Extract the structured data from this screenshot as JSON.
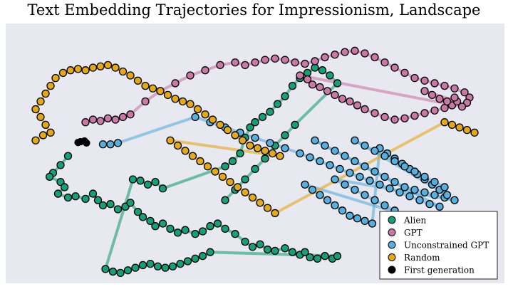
{
  "chart_data": {
    "type": "scatter",
    "title": "Text Embedding Trajectories for Impressionism, Landscape",
    "xlabel": "",
    "ylabel": "",
    "grid": false,
    "legend_position": "bottom-right",
    "background": "#e8e8f0",
    "series": [
      {
        "name": "Alien",
        "color": "#1a9e77",
        "points": [
          [
            0.125,
            0.51
          ],
          [
            0.11,
            0.545
          ],
          [
            0.095,
            0.575
          ],
          [
            0.088,
            0.59
          ],
          [
            0.11,
            0.61
          ],
          [
            0.118,
            0.63
          ],
          [
            0.105,
            0.655
          ],
          [
            0.125,
            0.67
          ],
          [
            0.14,
            0.665
          ],
          [
            0.16,
            0.675
          ],
          [
            0.175,
            0.655
          ],
          [
            0.185,
            0.68
          ],
          [
            0.195,
            0.7
          ],
          [
            0.21,
            0.695
          ],
          [
            0.225,
            0.715
          ],
          [
            0.24,
            0.705
          ],
          [
            0.25,
            0.69
          ],
          [
            0.265,
            0.725
          ],
          [
            0.275,
            0.745
          ],
          [
            0.29,
            0.76
          ],
          [
            0.3,
            0.78
          ],
          [
            0.315,
            0.77
          ],
          [
            0.33,
            0.79
          ],
          [
            0.345,
            0.805
          ],
          [
            0.36,
            0.795
          ],
          [
            0.38,
            0.81
          ],
          [
            0.395,
            0.8
          ],
          [
            0.41,
            0.78
          ],
          [
            0.425,
            0.77
          ],
          [
            0.44,
            0.79
          ],
          [
            0.46,
            0.81
          ],
          [
            0.48,
            0.84
          ],
          [
            0.495,
            0.86
          ],
          [
            0.51,
            0.85
          ],
          [
            0.525,
            0.87
          ],
          [
            0.54,
            0.875
          ],
          [
            0.56,
            0.865
          ],
          [
            0.575,
            0.88
          ],
          [
            0.59,
            0.89
          ],
          [
            0.6,
            0.88
          ],
          [
            0.61,
            0.9
          ],
          [
            0.625,
            0.905
          ],
          [
            0.64,
            0.895
          ],
          [
            0.655,
            0.905
          ],
          [
            0.665,
            0.895
          ],
          [
            0.41,
            0.88
          ],
          [
            0.395,
            0.895
          ],
          [
            0.38,
            0.905
          ],
          [
            0.365,
            0.915
          ],
          [
            0.35,
            0.925
          ],
          [
            0.335,
            0.935
          ],
          [
            0.32,
            0.94
          ],
          [
            0.305,
            0.935
          ],
          [
            0.29,
            0.925
          ],
          [
            0.275,
            0.93
          ],
          [
            0.26,
            0.94
          ],
          [
            0.245,
            0.95
          ],
          [
            0.23,
            0.96
          ],
          [
            0.215,
            0.955
          ],
          [
            0.2,
            0.945
          ],
          [
            0.255,
            0.6
          ],
          [
            0.27,
            0.605
          ],
          [
            0.285,
            0.62
          ],
          [
            0.3,
            0.61
          ],
          [
            0.315,
            0.635
          ],
          [
            0.44,
            0.55
          ],
          [
            0.455,
            0.53
          ],
          [
            0.47,
            0.5
          ],
          [
            0.48,
            0.44
          ],
          [
            0.49,
            0.4
          ],
          [
            0.5,
            0.38
          ],
          [
            0.515,
            0.36
          ],
          [
            0.53,
            0.34
          ],
          [
            0.545,
            0.31
          ],
          [
            0.56,
            0.28
          ],
          [
            0.575,
            0.24
          ],
          [
            0.59,
            0.21
          ],
          [
            0.605,
            0.19
          ],
          [
            0.62,
            0.17
          ],
          [
            0.635,
            0.18
          ],
          [
            0.65,
            0.2
          ],
          [
            0.665,
            0.23
          ],
          [
            0.58,
            0.39
          ],
          [
            0.56,
            0.43
          ],
          [
            0.54,
            0.47
          ],
          [
            0.52,
            0.52
          ],
          [
            0.5,
            0.56
          ],
          [
            0.48,
            0.6
          ],
          [
            0.46,
            0.64
          ],
          [
            0.44,
            0.68
          ]
        ]
      },
      {
        "name": "GPT",
        "color": "#c87aa6",
        "points": [
          [
            0.16,
            0.38
          ],
          [
            0.175,
            0.37
          ],
          [
            0.19,
            0.375
          ],
          [
            0.205,
            0.365
          ],
          [
            0.22,
            0.37
          ],
          [
            0.235,
            0.36
          ],
          [
            0.25,
            0.35
          ],
          [
            0.28,
            0.3
          ],
          [
            0.31,
            0.26
          ],
          [
            0.34,
            0.23
          ],
          [
            0.37,
            0.2
          ],
          [
            0.4,
            0.18
          ],
          [
            0.43,
            0.16
          ],
          [
            0.46,
            0.15
          ],
          [
            0.48,
            0.16
          ],
          [
            0.5,
            0.15
          ],
          [
            0.52,
            0.14
          ],
          [
            0.54,
            0.135
          ],
          [
            0.56,
            0.14
          ],
          [
            0.58,
            0.15
          ],
          [
            0.6,
            0.155
          ],
          [
            0.62,
            0.145
          ],
          [
            0.64,
            0.13
          ],
          [
            0.66,
            0.12
          ],
          [
            0.68,
            0.11
          ],
          [
            0.7,
            0.105
          ],
          [
            0.72,
            0.115
          ],
          [
            0.74,
            0.13
          ],
          [
            0.76,
            0.15
          ],
          [
            0.78,
            0.17
          ],
          [
            0.8,
            0.19
          ],
          [
            0.82,
            0.21
          ],
          [
            0.84,
            0.22
          ],
          [
            0.86,
            0.23
          ],
          [
            0.88,
            0.24
          ],
          [
            0.9,
            0.25
          ],
          [
            0.92,
            0.265
          ],
          [
            0.93,
            0.285
          ],
          [
            0.925,
            0.305
          ],
          [
            0.915,
            0.32
          ],
          [
            0.59,
            0.2
          ],
          [
            0.605,
            0.215
          ],
          [
            0.615,
            0.235
          ],
          [
            0.63,
            0.245
          ],
          [
            0.645,
            0.26
          ],
          [
            0.66,
            0.275
          ],
          [
            0.675,
            0.29
          ],
          [
            0.69,
            0.3
          ],
          [
            0.705,
            0.315
          ],
          [
            0.72,
            0.33
          ],
          [
            0.74,
            0.345
          ],
          [
            0.76,
            0.36
          ],
          [
            0.78,
            0.37
          ],
          [
            0.8,
            0.365
          ],
          [
            0.82,
            0.355
          ],
          [
            0.84,
            0.345
          ],
          [
            0.86,
            0.335
          ],
          [
            0.88,
            0.325
          ],
          [
            0.895,
            0.315
          ],
          [
            0.905,
            0.3
          ],
          [
            0.84,
            0.26
          ],
          [
            0.855,
            0.275
          ],
          [
            0.87,
            0.29
          ],
          [
            0.885,
            0.3
          ],
          [
            0.9,
            0.285
          ]
        ]
      },
      {
        "name": "Unconstrained GPT",
        "color": "#5aaedb",
        "points": [
          [
            0.195,
            0.465
          ],
          [
            0.21,
            0.465
          ],
          [
            0.225,
            0.46
          ],
          [
            0.38,
            0.36
          ],
          [
            0.41,
            0.38
          ],
          [
            0.44,
            0.4
          ],
          [
            0.47,
            0.42
          ],
          [
            0.5,
            0.44
          ],
          [
            0.53,
            0.46
          ],
          [
            0.56,
            0.48
          ],
          [
            0.59,
            0.5
          ],
          [
            0.61,
            0.515
          ],
          [
            0.63,
            0.53
          ],
          [
            0.65,
            0.545
          ],
          [
            0.67,
            0.56
          ],
          [
            0.69,
            0.575
          ],
          [
            0.71,
            0.59
          ],
          [
            0.73,
            0.605
          ],
          [
            0.75,
            0.62
          ],
          [
            0.77,
            0.635
          ],
          [
            0.79,
            0.65
          ],
          [
            0.81,
            0.665
          ],
          [
            0.83,
            0.68
          ],
          [
            0.85,
            0.695
          ],
          [
            0.87,
            0.705
          ],
          [
            0.62,
            0.45
          ],
          [
            0.64,
            0.47
          ],
          [
            0.66,
            0.49
          ],
          [
            0.68,
            0.51
          ],
          [
            0.7,
            0.53
          ],
          [
            0.72,
            0.55
          ],
          [
            0.74,
            0.57
          ],
          [
            0.76,
            0.59
          ],
          [
            0.78,
            0.61
          ],
          [
            0.8,
            0.63
          ],
          [
            0.82,
            0.64
          ],
          [
            0.84,
            0.65
          ],
          [
            0.86,
            0.66
          ],
          [
            0.88,
            0.67
          ],
          [
            0.9,
            0.68
          ],
          [
            0.66,
            0.6
          ],
          [
            0.68,
            0.62
          ],
          [
            0.7,
            0.64
          ],
          [
            0.72,
            0.66
          ],
          [
            0.74,
            0.68
          ],
          [
            0.76,
            0.7
          ],
          [
            0.78,
            0.72
          ],
          [
            0.8,
            0.74
          ],
          [
            0.82,
            0.75
          ],
          [
            0.84,
            0.76
          ],
          [
            0.6,
            0.62
          ],
          [
            0.615,
            0.64
          ],
          [
            0.63,
            0.66
          ],
          [
            0.645,
            0.68
          ],
          [
            0.66,
            0.7
          ],
          [
            0.675,
            0.72
          ],
          [
            0.69,
            0.74
          ],
          [
            0.705,
            0.75
          ],
          [
            0.72,
            0.76
          ],
          [
            0.735,
            0.77
          ],
          [
            0.75,
            0.48
          ],
          [
            0.765,
            0.5
          ],
          [
            0.78,
            0.52
          ],
          [
            0.795,
            0.54
          ],
          [
            0.81,
            0.56
          ],
          [
            0.825,
            0.58
          ],
          [
            0.84,
            0.6
          ],
          [
            0.855,
            0.62
          ],
          [
            0.87,
            0.64
          ],
          [
            0.885,
            0.66
          ],
          [
            0.7,
            0.45
          ],
          [
            0.72,
            0.47
          ],
          [
            0.74,
            0.49
          ],
          [
            0.76,
            0.51
          ],
          [
            0.78,
            0.53
          ],
          [
            0.8,
            0.55
          ],
          [
            0.82,
            0.57
          ],
          [
            0.84,
            0.59
          ],
          [
            0.86,
            0.61
          ],
          [
            0.88,
            0.63
          ]
        ]
      },
      {
        "name": "Random",
        "color": "#e3a91e",
        "points": [
          [
            0.06,
            0.45
          ],
          [
            0.075,
            0.43
          ],
          [
            0.09,
            0.42
          ],
          [
            0.08,
            0.39
          ],
          [
            0.07,
            0.36
          ],
          [
            0.06,
            0.33
          ],
          [
            0.07,
            0.3
          ],
          [
            0.08,
            0.27
          ],
          [
            0.09,
            0.24
          ],
          [
            0.1,
            0.21
          ],
          [
            0.115,
            0.19
          ],
          [
            0.13,
            0.18
          ],
          [
            0.145,
            0.175
          ],
          [
            0.16,
            0.18
          ],
          [
            0.175,
            0.17
          ],
          [
            0.19,
            0.165
          ],
          [
            0.205,
            0.16
          ],
          [
            0.22,
            0.17
          ],
          [
            0.235,
            0.185
          ],
          [
            0.25,
            0.2
          ],
          [
            0.265,
            0.22
          ],
          [
            0.28,
            0.24
          ],
          [
            0.295,
            0.25
          ],
          [
            0.31,
            0.26
          ],
          [
            0.325,
            0.275
          ],
          [
            0.34,
            0.29
          ],
          [
            0.355,
            0.3
          ],
          [
            0.37,
            0.31
          ],
          [
            0.385,
            0.33
          ],
          [
            0.4,
            0.35
          ],
          [
            0.415,
            0.37
          ],
          [
            0.43,
            0.39
          ],
          [
            0.445,
            0.41
          ],
          [
            0.46,
            0.43
          ],
          [
            0.475,
            0.45
          ],
          [
            0.49,
            0.47
          ],
          [
            0.505,
            0.48
          ],
          [
            0.52,
            0.49
          ],
          [
            0.535,
            0.5
          ],
          [
            0.55,
            0.51
          ],
          [
            0.33,
            0.45
          ],
          [
            0.345,
            0.47
          ],
          [
            0.36,
            0.49
          ],
          [
            0.375,
            0.51
          ],
          [
            0.39,
            0.53
          ],
          [
            0.405,
            0.55
          ],
          [
            0.42,
            0.57
          ],
          [
            0.435,
            0.59
          ],
          [
            0.45,
            0.61
          ],
          [
            0.465,
            0.63
          ],
          [
            0.48,
            0.65
          ],
          [
            0.495,
            0.67
          ],
          [
            0.51,
            0.69
          ],
          [
            0.525,
            0.71
          ],
          [
            0.54,
            0.73
          ],
          [
            0.88,
            0.38
          ],
          [
            0.895,
            0.39
          ],
          [
            0.91,
            0.4
          ],
          [
            0.925,
            0.41
          ],
          [
            0.94,
            0.42
          ]
        ]
      },
      {
        "name": "First generation",
        "color": "#000000",
        "points": [
          [
            0.15,
            0.455
          ],
          [
            0.158,
            0.452
          ],
          [
            0.145,
            0.458
          ],
          [
            0.162,
            0.46
          ]
        ]
      }
    ]
  }
}
